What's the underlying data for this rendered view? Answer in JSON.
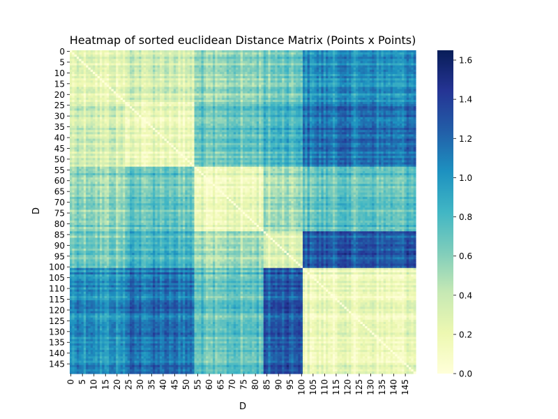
{
  "chart_data": {
    "type": "heatmap",
    "title": "Heatmap of sorted euclidean Distance Matrix (Points x Points)",
    "xlabel": "D",
    "ylabel": "D",
    "n_points": 150,
    "x_ticks": [
      0,
      5,
      10,
      15,
      20,
      25,
      30,
      35,
      40,
      45,
      50,
      55,
      60,
      65,
      70,
      75,
      80,
      85,
      90,
      95,
      100,
      105,
      110,
      115,
      120,
      125,
      130,
      135,
      140,
      145
    ],
    "y_ticks": [
      0,
      5,
      10,
      15,
      20,
      25,
      30,
      35,
      40,
      45,
      50,
      55,
      60,
      65,
      70,
      75,
      80,
      85,
      90,
      95,
      100,
      105,
      110,
      115,
      120,
      125,
      130,
      135,
      140,
      145
    ],
    "clusters": [
      {
        "start": 0,
        "end": 24
      },
      {
        "start": 24,
        "end": 54
      },
      {
        "start": 54,
        "end": 84
      },
      {
        "start": 84,
        "end": 101
      },
      {
        "start": 101,
        "end": 150
      }
    ],
    "block_means": [
      [
        0.2,
        0.32,
        0.55,
        0.62,
        1.0
      ],
      [
        0.32,
        0.18,
        0.7,
        0.8,
        1.15
      ],
      [
        0.55,
        0.7,
        0.2,
        0.5,
        0.72
      ],
      [
        0.62,
        0.8,
        0.5,
        0.25,
        1.25
      ],
      [
        1.0,
        1.15,
        0.72,
        1.25,
        0.18
      ]
    ],
    "colorbar": {
      "min": 0.0,
      "max": 1.65,
      "ticks": [
        0.0,
        0.2,
        0.4,
        0.6,
        0.8,
        1.0,
        1.2,
        1.4,
        1.6
      ],
      "tick_labels": [
        "0.0",
        "0.2",
        "0.4",
        "0.6",
        "0.8",
        "1.0",
        "1.2",
        "1.4",
        "1.6"
      ],
      "colormap": "YlGnBu"
    }
  }
}
